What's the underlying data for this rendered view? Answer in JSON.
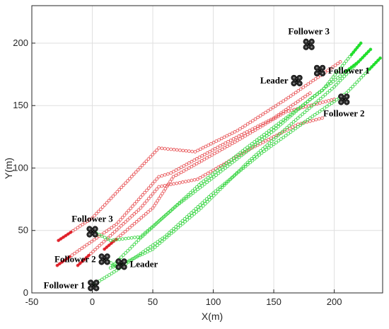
{
  "chart_data": {
    "type": "scatter",
    "xlabel": "X(m)",
    "ylabel": "Y(m)",
    "xlim": [
      -50,
      240
    ],
    "ylim": [
      0,
      230
    ],
    "xticks": [
      -50,
      0,
      50,
      100,
      150,
      200
    ],
    "yticks": [
      0,
      50,
      100,
      150,
      200
    ],
    "grid": true,
    "colors": {
      "reference": "#e8595c",
      "actual": "#3fd64a",
      "start_marker": "#e0202a",
      "end_marker": "#1fe02a"
    },
    "series": [
      {
        "group": "reference",
        "color": "#e8595c",
        "points": [
          [
            -28,
            42
          ],
          [
            0,
            60
          ],
          [
            55,
            116
          ],
          [
            85,
            113
          ],
          [
            120,
            130
          ],
          [
            160,
            155
          ],
          [
            205,
            185
          ]
        ]
      },
      {
        "group": "reference",
        "color": "#e8595c",
        "points": [
          [
            -29,
            22
          ],
          [
            20,
            55
          ],
          [
            55,
            93
          ],
          [
            65,
            96
          ],
          [
            110,
            120
          ],
          [
            150,
            140
          ],
          [
            180,
            160
          ]
        ]
      },
      {
        "group": "reference",
        "color": "#e8595c",
        "points": [
          [
            -12,
            22
          ],
          [
            40,
            68
          ],
          [
            55,
            85
          ],
          [
            87,
            91
          ],
          [
            130,
            115
          ],
          [
            170,
            135
          ],
          [
            190,
            140
          ]
        ]
      },
      {
        "group": "reference",
        "color": "#e8595c",
        "points": [
          [
            10,
            35
          ],
          [
            50,
            68
          ],
          [
            67,
            93
          ],
          [
            80,
            100
          ],
          [
            120,
            122
          ],
          [
            160,
            145
          ],
          [
            200,
            155
          ]
        ]
      },
      {
        "group": "actual",
        "color": "#3fd64a",
        "points": [
          [
            0,
            6
          ],
          [
            20,
            18
          ],
          [
            60,
            45
          ],
          [
            100,
            80
          ],
          [
            140,
            112
          ],
          [
            180,
            140
          ],
          [
            210,
            160
          ],
          [
            238,
            188
          ]
        ]
      },
      {
        "group": "actual",
        "color": "#3fd64a",
        "points": [
          [
            11,
            27
          ],
          [
            20,
            21
          ],
          [
            50,
            35
          ],
          [
            90,
            68
          ],
          [
            130,
            106
          ],
          [
            170,
            140
          ],
          [
            200,
            165
          ],
          [
            230,
            195
          ]
        ]
      },
      {
        "group": "actual",
        "color": "#3fd64a",
        "points": [
          [
            1,
            49
          ],
          [
            15,
            42
          ],
          [
            40,
            45
          ],
          [
            70,
            70
          ],
          [
            110,
            100
          ],
          [
            150,
            130
          ],
          [
            180,
            155
          ],
          [
            220,
            185
          ]
        ]
      },
      {
        "group": "actual",
        "color": "#3fd64a",
        "points": [
          [
            24,
            23
          ],
          [
            15,
            20
          ],
          [
            40,
            44
          ],
          [
            90,
            88
          ],
          [
            130,
            118
          ],
          [
            160,
            140
          ],
          [
            190,
            162
          ],
          [
            222,
            200
          ]
        ]
      }
    ],
    "drones": [
      {
        "x": 1,
        "y": 6,
        "label": "Follower 1",
        "label_side": "left"
      },
      {
        "x": 10,
        "y": 27,
        "label": "Follower 2",
        "label_side": "left"
      },
      {
        "x": 0,
        "y": 49,
        "label": "Follower 3",
        "label_side": "top"
      },
      {
        "x": 24,
        "y": 23,
        "label": "Leader",
        "label_side": "right"
      },
      {
        "x": 169,
        "y": 170,
        "label": "Leader",
        "label_side": "left"
      },
      {
        "x": 188,
        "y": 178,
        "label": "Follower 1",
        "label_side": "right"
      },
      {
        "x": 208,
        "y": 155,
        "label": "Follower 2",
        "label_side": "bottom"
      },
      {
        "x": 179,
        "y": 199,
        "label": "Follower 3",
        "label_side": "top"
      }
    ]
  }
}
